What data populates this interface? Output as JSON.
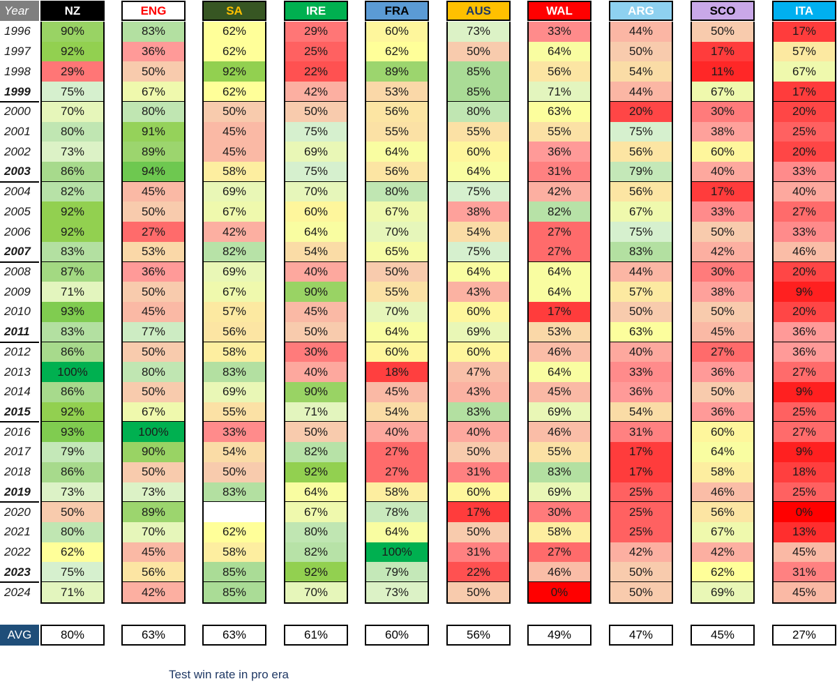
{
  "chart_data": {
    "type": "table",
    "title": "Test win rate in pro era",
    "year_header": "Year",
    "avg_label": "AVG",
    "years": [
      "1996",
      "1997",
      "1998",
      "1999",
      "2000",
      "2001",
      "2002",
      "2003",
      "2004",
      "2005",
      "2006",
      "2007",
      "2008",
      "2009",
      "2010",
      "2011",
      "2012",
      "2013",
      "2014",
      "2015",
      "2016",
      "2017",
      "2018",
      "2019",
      "2020",
      "2021",
      "2022",
      "2023",
      "2024"
    ],
    "bold_years": [
      "1999",
      "2003",
      "2007",
      "2011",
      "2015",
      "2019",
      "2023"
    ],
    "teams": [
      {
        "name": "NZ",
        "header_bg": "#000000",
        "header_fg": "#ffffff",
        "avg": 80,
        "values": [
          90,
          92,
          29,
          75,
          70,
          80,
          73,
          86,
          82,
          92,
          92,
          83,
          87,
          71,
          93,
          83,
          86,
          100,
          86,
          92,
          93,
          79,
          86,
          73,
          50,
          80,
          62,
          75,
          71
        ]
      },
      {
        "name": "ENG",
        "header_bg": "#ffffff",
        "header_fg": "#ff0000",
        "avg": 63,
        "values": [
          83,
          36,
          50,
          67,
          80,
          91,
          89,
          94,
          45,
          50,
          27,
          53,
          36,
          50,
          45,
          77,
          50,
          80,
          50,
          67,
          100,
          90,
          50,
          73,
          89,
          70,
          45,
          56,
          42
        ]
      },
      {
        "name": "SA",
        "header_bg": "#375623",
        "header_fg": "#ffc000",
        "avg": 63,
        "values": [
          62,
          62,
          92,
          62,
          50,
          45,
          45,
          58,
          69,
          67,
          42,
          82,
          69,
          67,
          57,
          56,
          58,
          83,
          69,
          55,
          33,
          54,
          50,
          83,
          null,
          62,
          58,
          85,
          85
        ]
      },
      {
        "name": "IRE",
        "header_bg": "#00b050",
        "header_fg": "#ffffff",
        "avg": 61,
        "values": [
          29,
          25,
          22,
          42,
          50,
          75,
          69,
          75,
          70,
          60,
          64,
          54,
          40,
          90,
          45,
          50,
          30,
          40,
          90,
          71,
          50,
          82,
          92,
          64,
          67,
          80,
          82,
          92,
          70
        ]
      },
      {
        "name": "FRA",
        "header_bg": "#5b9bd5",
        "header_fg": "#000000",
        "avg": 60,
        "values": [
          60,
          62,
          89,
          53,
          56,
          55,
          64,
          56,
          80,
          67,
          70,
          65,
          50,
          55,
          70,
          64,
          60,
          18,
          45,
          54,
          40,
          27,
          27,
          58,
          78,
          64,
          100,
          79,
          73
        ]
      },
      {
        "name": "AUS",
        "header_bg": "#ffc000",
        "header_fg": "#1f3864",
        "avg": 56,
        "values": [
          73,
          50,
          85,
          85,
          80,
          55,
          60,
          64,
          75,
          38,
          54,
          75,
          64,
          43,
          60,
          69,
          60,
          47,
          43,
          83,
          40,
          50,
          31,
          60,
          17,
          50,
          31,
          22,
          50
        ]
      },
      {
        "name": "WAL",
        "header_bg": "#ff0000",
        "header_fg": "#ffffff",
        "avg": 49,
        "values": [
          33,
          64,
          56,
          71,
          63,
          55,
          36,
          31,
          42,
          82,
          27,
          27,
          64,
          64,
          17,
          53,
          46,
          64,
          45,
          69,
          46,
          55,
          83,
          69,
          30,
          58,
          27,
          46,
          0
        ]
      },
      {
        "name": "ARG",
        "header_bg": "#8ed1f0",
        "header_fg": "#ffffff",
        "avg": 47,
        "values": [
          44,
          50,
          54,
          44,
          20,
          75,
          56,
          79,
          56,
          67,
          75,
          83,
          44,
          57,
          50,
          63,
          40,
          33,
          36,
          54,
          31,
          17,
          17,
          25,
          25,
          25,
          42,
          50,
          50
        ]
      },
      {
        "name": "SCO",
        "header_bg": "#c9a8e8",
        "header_fg": "#000000",
        "avg": 45,
        "values": [
          50,
          17,
          11,
          67,
          30,
          38,
          60,
          40,
          17,
          33,
          50,
          42,
          30,
          38,
          50,
          45,
          27,
          36,
          50,
          36,
          60,
          64,
          58,
          46,
          56,
          67,
          42,
          62,
          69
        ]
      },
      {
        "name": "ITA",
        "header_bg": "#00b0f0",
        "header_fg": "#ffffff",
        "avg": 27,
        "values": [
          17,
          57,
          67,
          17,
          20,
          25,
          20,
          33,
          40,
          27,
          33,
          46,
          20,
          9,
          20,
          36,
          36,
          27,
          9,
          25,
          27,
          9,
          18,
          25,
          0,
          13,
          45,
          31,
          45
        ]
      }
    ]
  }
}
